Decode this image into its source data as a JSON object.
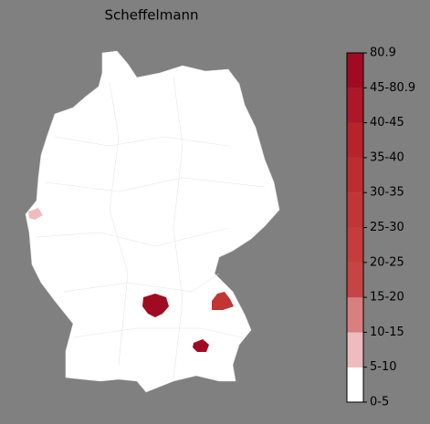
{
  "title": "Scheffelmann",
  "colorbar": {
    "ticks": [
      "0-5",
      "5-10",
      "10-15",
      "15-20",
      "20-25",
      "25-30",
      "30-35",
      "35-40",
      "40-45",
      "45-80.9",
      "80.9"
    ],
    "colors": [
      "#ffffff",
      "#eebcbc",
      "#d97f7f",
      "#c74444",
      "#c53c3c",
      "#c23535",
      "#bd2d30",
      "#b6232b",
      "#ad1727",
      "#a10b22"
    ]
  }
}
